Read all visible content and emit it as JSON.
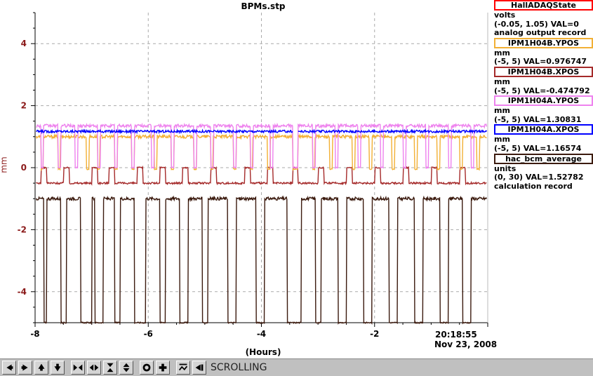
{
  "chart_data": {
    "type": "line",
    "title": "BPMs.stp",
    "xlabel": "(Hours)",
    "ylabel": "mm",
    "xlim": [
      -8.0,
      0.0
    ],
    "ylim": [
      -5.0,
      5.0
    ],
    "x_ticks": [
      -8,
      -6,
      -4,
      -2
    ],
    "x_tick_labels": [
      "-8",
      "-6",
      "-4",
      "-2"
    ],
    "y_ticks": [
      -4,
      -2,
      0,
      2,
      4
    ],
    "y_tick_labels": [
      "-4",
      "-2",
      "0",
      "2",
      "4"
    ],
    "grid": true,
    "legend_placement": "right",
    "timestamp_time": "20:18:55",
    "timestamp_date": "Nov 23, 2008",
    "series": [
      {
        "name": "HallADAQState",
        "units": "volts",
        "range": "(-0.05, 1.05)",
        "value": "VAL=0",
        "note": "analog output record",
        "color": "#ff0000",
        "baseline": 0,
        "drop": 0,
        "wobble": 0,
        "drops": []
      },
      {
        "name": "IPM1H04B.YPOS",
        "units": "mm",
        "range": "(-5, 5)",
        "value": "VAL=0.976747",
        "note": "",
        "color": "#f2b035",
        "baseline": 1.0,
        "drop": -0.05,
        "wobble": 0.05,
        "drops": [
          [
            -7.9,
            -7.86
          ],
          [
            -7.6,
            -7.56
          ],
          [
            -7.1,
            -7.05
          ],
          [
            -6.9,
            -6.86
          ],
          [
            -6.6,
            -6.55
          ],
          [
            -6.3,
            -6.25
          ],
          [
            -5.9,
            -5.85
          ],
          [
            -5.6,
            -5.55
          ],
          [
            -5.2,
            -5.15
          ],
          [
            -4.9,
            -4.86
          ],
          [
            -4.5,
            -4.45
          ],
          [
            -4.2,
            -4.16
          ],
          [
            -3.9,
            -3.85
          ],
          [
            -3.45,
            -3.36
          ],
          [
            -3.1,
            -3.06
          ],
          [
            -2.8,
            -2.75
          ],
          [
            -2.4,
            -2.35
          ],
          [
            -2.1,
            -2.05
          ],
          [
            -1.7,
            -1.65
          ],
          [
            -1.3,
            -1.25
          ],
          [
            -0.9,
            -0.85
          ],
          [
            -0.5,
            -0.45
          ],
          [
            -0.2,
            -0.15
          ]
        ]
      },
      {
        "name": "IPM1H04B.XPOS",
        "units": "mm",
        "range": "(-5, 5)",
        "value": "VAL=-0.474792",
        "note": "",
        "color": "#a52a2a",
        "baseline": -0.5,
        "drop": 0.0,
        "wobble": 0.03,
        "drops": [
          [
            -7.9,
            -7.8
          ],
          [
            -7.5,
            -7.4
          ],
          [
            -7.0,
            -6.9
          ],
          [
            -6.7,
            -6.6
          ],
          [
            -6.2,
            -6.1
          ],
          [
            -5.8,
            -5.7
          ],
          [
            -5.4,
            -5.3
          ],
          [
            -4.9,
            -4.8
          ],
          [
            -4.3,
            -4.2
          ],
          [
            -3.9,
            -3.8
          ],
          [
            -3.45,
            -3.36
          ],
          [
            -3.0,
            -2.9
          ],
          [
            -2.5,
            -2.4
          ],
          [
            -2.0,
            -1.9
          ],
          [
            -1.5,
            -1.4
          ],
          [
            -1.0,
            -0.9
          ],
          [
            -0.5,
            -0.4
          ]
        ]
      },
      {
        "name": "IPM1H04A.YPOS",
        "units": "mm",
        "range": "(-5, 5)",
        "value": "VAL=1.30831",
        "note": "",
        "color": "#ee82ee",
        "baseline": 1.35,
        "drop": 0.0,
        "wobble": 0.05,
        "drops": [
          [
            -7.9,
            -7.86
          ],
          [
            -7.6,
            -7.55
          ],
          [
            -7.3,
            -7.25
          ],
          [
            -6.9,
            -6.85
          ],
          [
            -6.6,
            -6.55
          ],
          [
            -6.3,
            -6.25
          ],
          [
            -5.95,
            -5.9
          ],
          [
            -5.6,
            -5.55
          ],
          [
            -5.2,
            -5.15
          ],
          [
            -4.9,
            -4.85
          ],
          [
            -4.5,
            -4.45
          ],
          [
            -4.2,
            -4.15
          ],
          [
            -3.85,
            -3.8
          ],
          [
            -3.45,
            -3.36
          ],
          [
            -3.1,
            -3.05
          ],
          [
            -2.7,
            -2.65
          ],
          [
            -2.3,
            -2.25
          ],
          [
            -1.9,
            -1.85
          ],
          [
            -1.5,
            -1.45
          ],
          [
            -1.1,
            -1.05
          ],
          [
            -0.7,
            -0.65
          ],
          [
            -0.3,
            -0.25
          ]
        ]
      },
      {
        "name": "IPM1H04A.XPOS",
        "units": "mm",
        "range": "(-5, 5)",
        "value": "VAL=1.16574",
        "note": "",
        "color": "#0000ff",
        "baseline": 1.17,
        "drop": null,
        "wobble": 0.04,
        "drops": [
          [
            -3.45,
            -3.36
          ]
        ]
      },
      {
        "name": "hac_bcm_average",
        "units": "units",
        "range": "(0, 30)",
        "value": "VAL=1.52782",
        "note": "calculation record",
        "color": "#3b1a0e",
        "baseline": -1.0,
        "drop": -5.0,
        "wobble": 0.05,
        "drops": [
          [
            -7.85,
            -7.8
          ],
          [
            -7.55,
            -7.45
          ],
          [
            -7.2,
            -7.0
          ],
          [
            -6.95,
            -6.8
          ],
          [
            -6.6,
            -6.5
          ],
          [
            -6.25,
            -6.05
          ],
          [
            -5.8,
            -5.7
          ],
          [
            -5.45,
            -5.3
          ],
          [
            -5.05,
            -4.95
          ],
          [
            -4.6,
            -4.45
          ],
          [
            -4.1,
            -3.95
          ],
          [
            -3.55,
            -3.3
          ],
          [
            -3.05,
            -2.95
          ],
          [
            -2.65,
            -2.5
          ],
          [
            -2.2,
            -2.05
          ],
          [
            -1.75,
            -1.6
          ],
          [
            -1.3,
            -1.15
          ],
          [
            -0.85,
            -0.7
          ],
          [
            -0.45,
            -0.3
          ]
        ]
      }
    ]
  },
  "toolbar": {
    "status": "SCROLLING",
    "buttons": [
      "arrow-left-icon",
      "arrow-right-icon",
      "arrow-up-icon",
      "arrow-down-icon",
      "zoom-horizontal-in-icon",
      "zoom-horizontal-out-icon",
      "zoom-vertical-in-icon",
      "zoom-vertical-out-icon",
      "autoscale-icon",
      "add-icon",
      "rescale-icon",
      "pan-left-icon"
    ]
  }
}
